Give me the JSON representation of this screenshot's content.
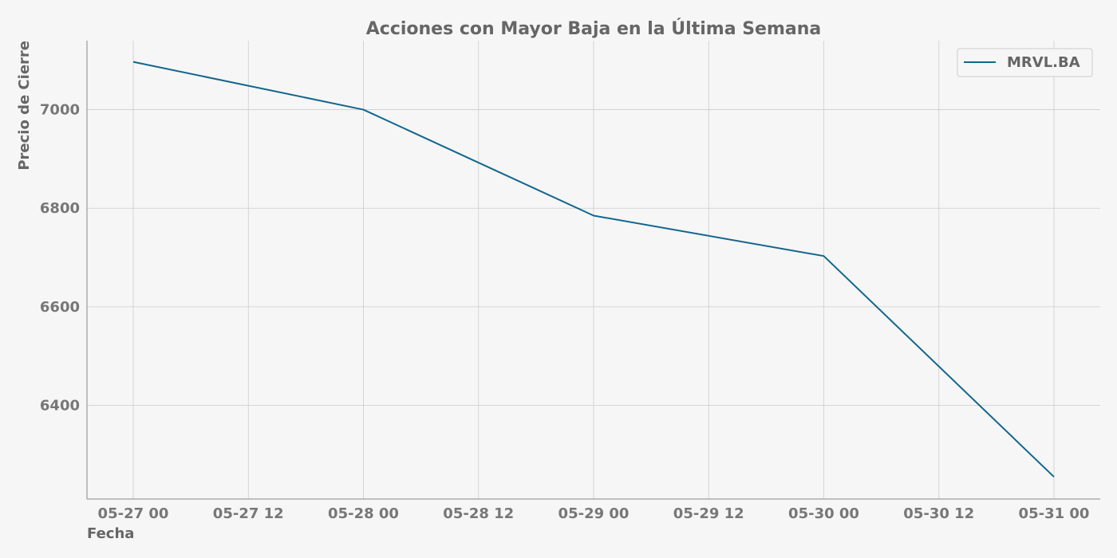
{
  "chart_data": {
    "type": "line",
    "title": "Acciones con Mayor Baja en la Última Semana",
    "xlabel": "Fecha",
    "ylabel": "Precio de Cierre",
    "x": [
      "2024-05-27",
      "2024-05-28",
      "2024-05-29",
      "2024-05-30",
      "2024-05-31"
    ],
    "x_ticks": [
      "05-27 00",
      "05-27 12",
      "05-28 00",
      "05-28 12",
      "05-29 00",
      "05-29 12",
      "05-30 00",
      "05-30 12",
      "05-31 00"
    ],
    "y_ticks": [
      6400,
      6600,
      6800,
      7000
    ],
    "ylim": [
      6210,
      7140
    ],
    "grid": true,
    "legend_position": "top-right",
    "series": [
      {
        "name": "MRVL.BA",
        "values": [
          7097,
          7000,
          6785,
          6703,
          6255
        ],
        "color": "#12668c"
      }
    ]
  }
}
